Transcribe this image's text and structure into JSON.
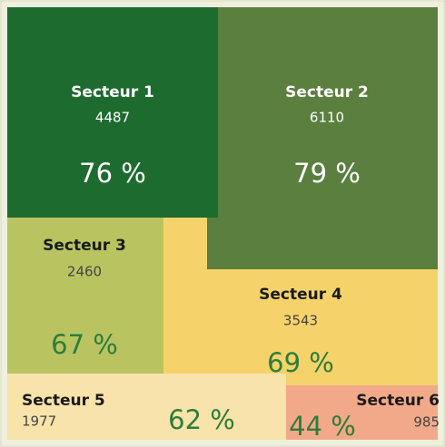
{
  "sectors": [
    {
      "name": "Secteur 1",
      "count": 4487,
      "percent": "76 %"
    },
    {
      "name": "Secteur 2",
      "count": 6110,
      "percent": "79 %"
    },
    {
      "name": "Secteur 3",
      "count": 2460,
      "percent": "67 %"
    },
    {
      "name": "Secteur 4",
      "count": 3543,
      "percent": "69 %"
    },
    {
      "name": "Secteur 5",
      "count": 1977,
      "percent": "62 %"
    },
    {
      "name": "Secteur 6",
      "count": 985,
      "percent": "44 %"
    }
  ]
}
